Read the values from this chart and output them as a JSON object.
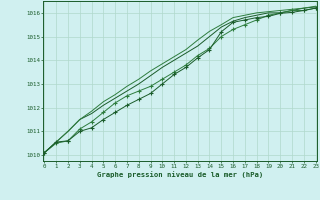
{
  "background_color": "#d0f0f0",
  "grid_color": "#b0d8cc",
  "line_color_dark": "#1a5c2a",
  "line_color_mid": "#2e7d3e",
  "x_min": 0,
  "x_max": 23,
  "y_min": 1009.75,
  "y_max": 1016.5,
  "yticks": [
    1010,
    1011,
    1012,
    1013,
    1014,
    1015,
    1016
  ],
  "xticks": [
    0,
    1,
    2,
    3,
    4,
    5,
    6,
    7,
    8,
    9,
    10,
    11,
    12,
    13,
    14,
    15,
    16,
    17,
    18,
    19,
    20,
    21,
    22,
    23
  ],
  "xlabel": "Graphe pression niveau de la mer (hPa)",
  "series1_x": [
    0,
    1,
    2,
    3,
    4,
    5,
    6,
    7,
    8,
    9,
    10,
    11,
    12,
    13,
    14,
    15,
    16,
    17,
    18,
    19,
    20,
    21,
    22,
    23
  ],
  "series1_y": [
    1010.1,
    1010.55,
    1010.6,
    1011.0,
    1011.15,
    1011.5,
    1011.8,
    1012.1,
    1012.35,
    1012.6,
    1013.0,
    1013.4,
    1013.7,
    1014.1,
    1014.45,
    1015.2,
    1015.6,
    1015.7,
    1015.8,
    1015.85,
    1015.98,
    1016.02,
    1016.1,
    1016.2
  ],
  "series2_x": [
    0,
    1,
    2,
    3,
    4,
    5,
    6,
    7,
    8,
    9,
    10,
    11,
    12,
    13,
    14,
    15,
    16,
    17,
    18,
    19,
    20,
    21,
    22,
    23
  ],
  "series2_y": [
    1010.1,
    1010.5,
    1010.6,
    1011.1,
    1011.4,
    1011.8,
    1012.2,
    1012.5,
    1012.7,
    1012.9,
    1013.2,
    1013.5,
    1013.8,
    1014.2,
    1014.5,
    1015.0,
    1015.3,
    1015.5,
    1015.7,
    1015.9,
    1016.0,
    1016.1,
    1016.1,
    1016.2
  ],
  "series3_x": [
    0,
    2,
    3,
    4,
    5,
    6,
    7,
    8,
    9,
    10,
    11,
    12,
    13,
    14,
    15,
    16,
    17,
    18,
    19,
    20,
    21,
    22,
    23
  ],
  "series3_y": [
    1010.1,
    1011.0,
    1011.5,
    1011.75,
    1012.1,
    1012.4,
    1012.7,
    1013.0,
    1013.35,
    1013.7,
    1014.0,
    1014.3,
    1014.6,
    1015.0,
    1015.4,
    1015.65,
    1015.8,
    1015.9,
    1016.0,
    1016.0,
    1016.1,
    1016.2,
    1016.25
  ],
  "series4_x": [
    0,
    2,
    3,
    4,
    5,
    6,
    7,
    8,
    9,
    10,
    11,
    12,
    13,
    14,
    15,
    16,
    17,
    18,
    19,
    20,
    21,
    22,
    23
  ],
  "series4_y": [
    1010.1,
    1011.0,
    1011.5,
    1011.85,
    1012.25,
    1012.55,
    1012.9,
    1013.2,
    1013.55,
    1013.85,
    1014.15,
    1014.45,
    1014.85,
    1015.22,
    1015.5,
    1015.8,
    1015.9,
    1016.0,
    1016.05,
    1016.1,
    1016.15,
    1016.2,
    1016.28
  ]
}
